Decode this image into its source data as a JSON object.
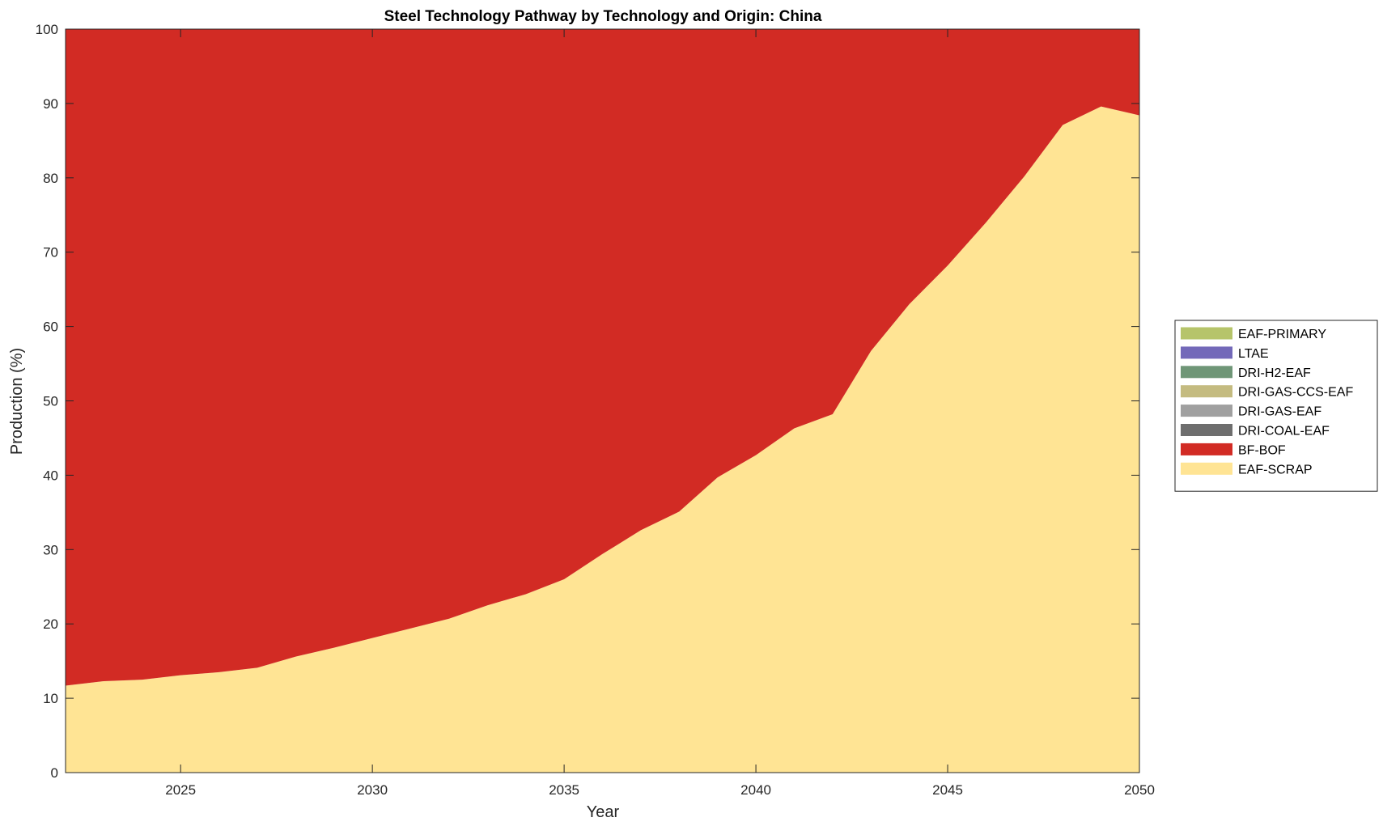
{
  "chart_data": {
    "type": "area",
    "stacked": true,
    "title": "Steel Technology Pathway by Technology and Origin: China",
    "xlabel": "Year",
    "ylabel": "Production (%)",
    "xlim": [
      2022,
      2050
    ],
    "ylim": [
      0,
      100
    ],
    "xticks": [
      2025,
      2030,
      2035,
      2040,
      2045,
      2050
    ],
    "yticks": [
      0,
      10,
      20,
      30,
      40,
      50,
      60,
      70,
      80,
      90,
      100
    ],
    "grid": false,
    "legend_position": "right",
    "x": [
      2022,
      2023,
      2024,
      2025,
      2026,
      2027,
      2028,
      2029,
      2030,
      2031,
      2032,
      2033,
      2034,
      2035,
      2036,
      2037,
      2038,
      2039,
      2040,
      2041,
      2042,
      2043,
      2044,
      2045,
      2046,
      2047,
      2048,
      2049,
      2050
    ],
    "series": [
      {
        "name": "EAF-SCRAP",
        "color": "#FFE494",
        "values": [
          11.7,
          12.3,
          12.5,
          13.1,
          13.5,
          14.1,
          15.6,
          16.8,
          18.1,
          19.4,
          20.7,
          22.5,
          24.0,
          26.0,
          29.4,
          32.6,
          35.1,
          39.7,
          42.7,
          46.3,
          48.2,
          56.7,
          63.0,
          68.2,
          74.0,
          80.2,
          87.1,
          89.6,
          88.4
        ]
      },
      {
        "name": "BF-BOF",
        "color": "#D22B24",
        "values": [
          88.3,
          87.7,
          87.5,
          86.9,
          86.5,
          85.9,
          84.4,
          83.2,
          81.9,
          80.6,
          79.3,
          77.5,
          76.0,
          74.0,
          70.6,
          67.4,
          64.9,
          60.3,
          57.3,
          53.7,
          51.8,
          43.3,
          37.0,
          31.8,
          26.0,
          19.8,
          12.9,
          10.4,
          11.6
        ]
      },
      {
        "name": "DRI-COAL-EAF",
        "color": "#6E6E6E",
        "values": [
          0,
          0,
          0,
          0,
          0,
          0,
          0,
          0,
          0,
          0,
          0,
          0,
          0,
          0,
          0,
          0,
          0,
          0,
          0,
          0,
          0,
          0,
          0,
          0,
          0,
          0,
          0,
          0,
          0
        ]
      },
      {
        "name": "DRI-GAS-EAF",
        "color": "#A0A0A0",
        "values": [
          0,
          0,
          0,
          0,
          0,
          0,
          0,
          0,
          0,
          0,
          0,
          0,
          0,
          0,
          0,
          0,
          0,
          0,
          0,
          0,
          0,
          0,
          0,
          0,
          0,
          0,
          0,
          0,
          0
        ]
      },
      {
        "name": "DRI-GAS-CCS-EAF",
        "color": "#C4BB80",
        "values": [
          0,
          0,
          0,
          0,
          0,
          0,
          0,
          0,
          0,
          0,
          0,
          0,
          0,
          0,
          0,
          0,
          0,
          0,
          0,
          0,
          0,
          0,
          0,
          0,
          0,
          0,
          0,
          0,
          0
        ]
      },
      {
        "name": "DRI-H2-EAF",
        "color": "#6F9677",
        "values": [
          0,
          0,
          0,
          0,
          0,
          0,
          0,
          0,
          0,
          0,
          0,
          0,
          0,
          0,
          0,
          0,
          0,
          0,
          0,
          0,
          0,
          0,
          0,
          0,
          0,
          0,
          0,
          0,
          0
        ]
      },
      {
        "name": "LTAE",
        "color": "#7369B9",
        "values": [
          0,
          0,
          0,
          0,
          0,
          0,
          0,
          0,
          0,
          0,
          0,
          0,
          0,
          0,
          0,
          0,
          0,
          0,
          0,
          0,
          0,
          0,
          0,
          0,
          0,
          0,
          0,
          0,
          0
        ]
      },
      {
        "name": "EAF-PRIMARY",
        "color": "#B6C46A",
        "values": [
          0,
          0,
          0,
          0,
          0,
          0,
          0,
          0,
          0,
          0,
          0,
          0,
          0,
          0,
          0,
          0,
          0,
          0,
          0,
          0,
          0,
          0,
          0,
          0,
          0,
          0,
          0,
          0,
          0
        ]
      }
    ],
    "legend_order": [
      "EAF-PRIMARY",
      "LTAE",
      "DRI-H2-EAF",
      "DRI-GAS-CCS-EAF",
      "DRI-GAS-EAF",
      "DRI-COAL-EAF",
      "BF-BOF",
      "EAF-SCRAP"
    ]
  }
}
